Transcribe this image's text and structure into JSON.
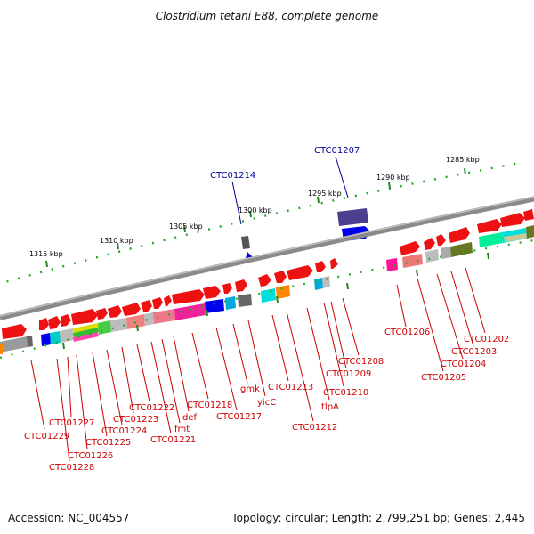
{
  "title": "Clostridium tetani E88, complete genome",
  "footer": {
    "accession": "Accession: NC_004557",
    "topology": "Topology: circular; Length: 2,799,251 bp; Genes: 2,445"
  },
  "scale_ticks": [
    "1285 kbp",
    "1290 kbp",
    "1295 kbp",
    "1300 kbp",
    "1305 kbp",
    "1310 kbp",
    "1315 kbp"
  ],
  "top_labels": [
    "CTC01207",
    "CTC01214"
  ],
  "bottom_labels": [
    "CTC01202",
    "CTC01203",
    "CTC01204",
    "CTC01205",
    "CTC01206",
    "CTC01208",
    "CTC01209",
    "CTC01210",
    "tlpA",
    "CTC01212",
    "CTC01213",
    "yicC",
    "gmk",
    "CTC01217",
    "CTC01218",
    "def",
    "fmt",
    "CTC01221",
    "CTC01222",
    "CTC01223",
    "CTC01224",
    "CTC01225",
    "CTC01226",
    "CTC01227",
    "CTC01228",
    "CTC01229"
  ]
}
